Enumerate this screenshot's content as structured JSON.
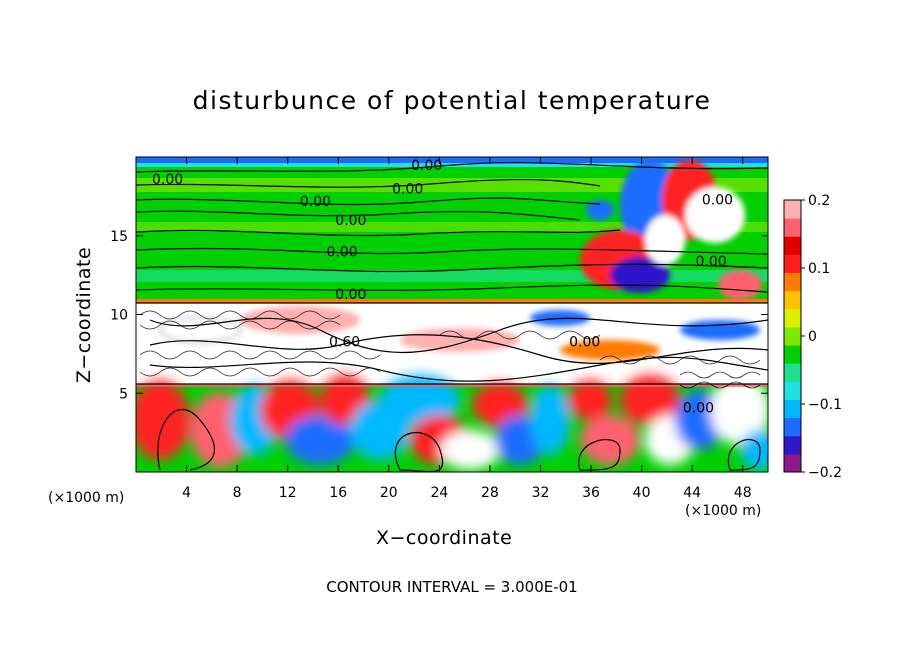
{
  "chart_data": {
    "type": "heatmap",
    "title": "disturbunce of potential temperature",
    "xlabel": "X−coordinate",
    "ylabel": "Z−coordinate",
    "x_units_label": "(×1000 m)",
    "y_units_label": "(×1000 m)",
    "xlim": [
      0,
      50
    ],
    "ylim": [
      0,
      20
    ],
    "x_ticks": [
      4,
      8,
      12,
      16,
      20,
      24,
      28,
      32,
      36,
      40,
      44,
      48
    ],
    "y_ticks": [
      5,
      10,
      15
    ],
    "colorbar": {
      "range": [
        -0.2,
        0.2
      ],
      "tick_values": [
        0.2,
        0.1,
        0,
        -0.1,
        -0.2
      ],
      "tick_labels": [
        "0.2",
        "0.1",
        "0",
        "−0.1",
        "−0.2"
      ],
      "colors": [
        "#8b1a8b",
        "#2d18c8",
        "#1e6cff",
        "#00b8ff",
        "#20e0e0",
        "#1fe08a",
        "#00d000",
        "#7de800",
        "#dcef00",
        "#ffc000",
        "#ff7a00",
        "#ff2020",
        "#e00000",
        "#ff6070",
        "#ffb0b0"
      ]
    },
    "contour_interval_note": "CONTOUR INTERVAL = 3.000E-01",
    "contour_labels": [
      {
        "text": "0.00",
        "x": 2.5,
        "y": 18.6
      },
      {
        "text": "0.00",
        "x": 23.0,
        "y": 19.5
      },
      {
        "text": "0.00",
        "x": 21.5,
        "y": 18.0
      },
      {
        "text": "0.00",
        "x": 14.2,
        "y": 17.2
      },
      {
        "text": "0.00",
        "x": 17.0,
        "y": 16.0
      },
      {
        "text": "0.00",
        "x": 16.3,
        "y": 14.0
      },
      {
        "text": "0.00",
        "x": 17.0,
        "y": 11.3
      },
      {
        "text": "0.00",
        "x": 45.5,
        "y": 13.4
      },
      {
        "text": "0.00",
        "x": 46.0,
        "y": 17.3
      },
      {
        "text": "0.00",
        "x": 35.5,
        "y": 8.3
      },
      {
        "text": "0.00",
        "x": 44.5,
        "y": 4.1
      },
      {
        "text": "0.60",
        "x": 16.5,
        "y": 8.3
      }
    ]
  }
}
